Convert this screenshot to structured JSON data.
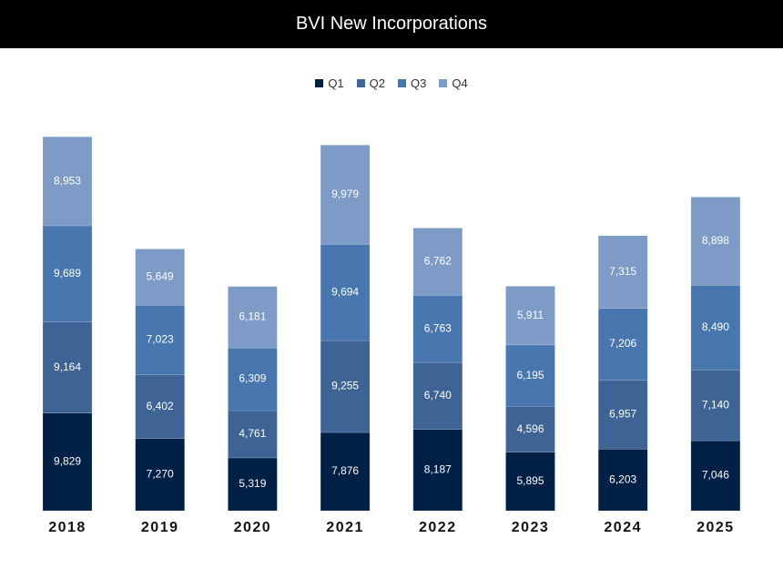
{
  "chart_data": {
    "type": "bar",
    "stacked": true,
    "title": "BVI New Incorporations",
    "xlabel": "",
    "ylabel": "",
    "categories": [
      "2018",
      "2019",
      "2020",
      "2021",
      "2022",
      "2023",
      "2024",
      "2025"
    ],
    "series": [
      {
        "name": "Q1",
        "color": "#012046",
        "values": [
          9829,
          7270,
          5319,
          7876,
          8187,
          5895,
          6203,
          7046
        ]
      },
      {
        "name": "Q2",
        "color": "#3d6495",
        "values": [
          9164,
          6402,
          4761,
          9255,
          6740,
          4596,
          6957,
          7140
        ]
      },
      {
        "name": "Q3",
        "color": "#4876ae",
        "values": [
          9689,
          7023,
          6309,
          9694,
          6763,
          6195,
          7206,
          8490
        ]
      },
      {
        "name": "Q4",
        "color": "#7d9bc6",
        "values": [
          8953,
          5649,
          6181,
          9979,
          6762,
          5911,
          7315,
          8898
        ]
      }
    ],
    "ylim": [
      0,
      39400
    ],
    "grid": false,
    "legend_position": "top-center"
  }
}
